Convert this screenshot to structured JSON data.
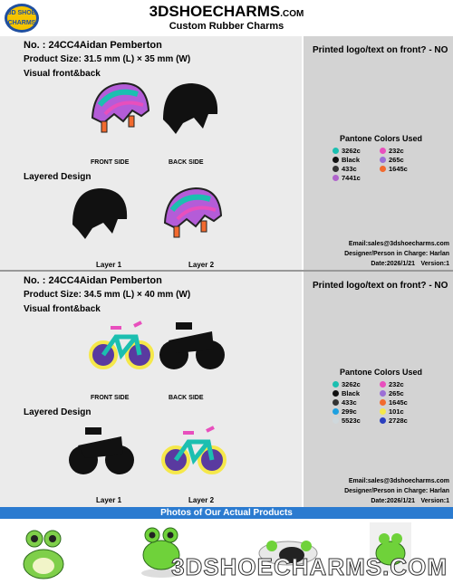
{
  "header": {
    "logo_top": "3D SHOE",
    "logo_bottom": "CHARMS",
    "title": "3DSHOECHARMS",
    "title_suffix": ".COM",
    "subtitle": "Custom Rubber Charms"
  },
  "products": [
    {
      "number": "No. : 24CC4Aidan Pemberton",
      "size": "Product Size: 31.5 mm (L) × 35 mm (W)",
      "visual_heading": "Visual front&back",
      "front_label": "FRONT SIDE",
      "back_label": "BACK SIDE",
      "layered_heading": "Layered Design",
      "layer1": "Layer 1",
      "layer2": "Layer 2",
      "printed": "Printed logo/text on front? - NO",
      "pantone_heading": "Pantone Colors Used",
      "pantone": [
        {
          "name": "3262c",
          "color": "#1bbfb0"
        },
        {
          "name": "232c",
          "color": "#e84fbd"
        },
        {
          "name": "Black",
          "color": "#111111"
        },
        {
          "name": "265c",
          "color": "#9b6fd6"
        },
        {
          "name": "433c",
          "color": "#333333"
        },
        {
          "name": "1645c",
          "color": "#f26a2e"
        },
        {
          "name": "7441c",
          "color": "#b064cc"
        }
      ],
      "email": "Email:sales@3dshoecharms.com",
      "designer": "Designer/Person in Charge: Harlan",
      "date": "Date:2026/1/21",
      "version": "Version:1"
    },
    {
      "number": "No. : 24CC4Aidan Pemberton",
      "size": "Product Size: 34.5 mm (L) × 40 mm (W)",
      "visual_heading": "Visual front&back",
      "front_label": "FRONT SIDE",
      "back_label": "BACK SIDE",
      "layered_heading": "Layered Design",
      "layer1": "Layer 1",
      "layer2": "Layer 2",
      "printed": "Printed logo/text on front? - NO",
      "pantone_heading": "Pantone Colors Used",
      "pantone": [
        {
          "name": "3262c",
          "color": "#1bbfb0"
        },
        {
          "name": "232c",
          "color": "#e84fbd"
        },
        {
          "name": "Black",
          "color": "#111111"
        },
        {
          "name": "265c",
          "color": "#9b6fd6"
        },
        {
          "name": "433c",
          "color": "#333333"
        },
        {
          "name": "1645c",
          "color": "#f26a2e"
        },
        {
          "name": "299c",
          "color": "#1ea0e0"
        },
        {
          "name": "101c",
          "color": "#f5e84a"
        },
        {
          "name": "5523c",
          "color": "#cfd8dc"
        },
        {
          "name": "2728c",
          "color": "#2a3fbf"
        }
      ],
      "email": "Email:sales@3dshoecharms.com",
      "designer": "Designer/Person in Charge: Harlan",
      "date": "Date:2026/1/21",
      "version": "Version:1"
    }
  ],
  "photos_bar": "Photos of Our Actual Products",
  "watermark": "3DSHOECHARMS.COM"
}
